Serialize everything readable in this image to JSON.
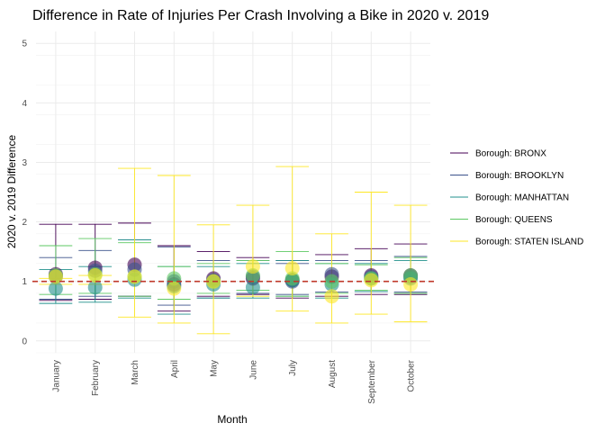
{
  "chart_data": {
    "type": "scatter",
    "title": "Difference in Rate of Injuries Per Crash Involving a Bike in 2020 v. 2019",
    "xlabel": "Month",
    "ylabel": "2020 v. 2019 Difference",
    "categories": [
      "January",
      "February",
      "March",
      "April",
      "May",
      "June",
      "July",
      "August",
      "September",
      "October"
    ],
    "ylim": [
      -0.2,
      5.2
    ],
    "yticks": [
      0,
      1,
      2,
      3,
      4,
      5
    ],
    "grid": true,
    "legend_position": "right",
    "reference_line": {
      "y": 1,
      "color": "#c0392b",
      "style": "dashed"
    },
    "series": [
      {
        "name": "Borough: BRONX",
        "color": "#440154",
        "values": [
          1.12,
          1.23,
          1.28,
          0.95,
          1.05,
          1.05,
          1.02,
          1.08,
          1.1,
          1.1
        ],
        "upper": [
          1.96,
          1.96,
          1.98,
          1.6,
          1.5,
          1.4,
          1.35,
          1.45,
          1.55,
          1.63
        ],
        "lower": [
          0.68,
          0.7,
          0.75,
          0.5,
          0.75,
          0.78,
          0.72,
          0.75,
          0.78,
          0.78
        ]
      },
      {
        "name": "Borough: BROOKLYN",
        "color": "#3b528b",
        "values": [
          1.08,
          1.18,
          1.2,
          1.0,
          1.02,
          1.08,
          1.0,
          1.12,
          1.08,
          1.08
        ],
        "upper": [
          1.4,
          1.52,
          1.7,
          1.58,
          1.35,
          1.35,
          1.3,
          1.35,
          1.35,
          1.42
        ],
        "lower": [
          0.7,
          0.75,
          0.75,
          0.6,
          0.72,
          0.8,
          0.78,
          0.82,
          0.83,
          0.82
        ]
      },
      {
        "name": "Borough: MANHATTAN",
        "color": "#21908c",
        "values": [
          0.88,
          0.9,
          1.03,
          0.92,
          0.95,
          0.9,
          1.02,
          0.95,
          1.05,
          1.05
        ],
        "upper": [
          1.2,
          1.25,
          1.7,
          1.25,
          1.25,
          1.3,
          1.35,
          1.3,
          1.3,
          1.35
        ],
        "lower": [
          0.63,
          0.65,
          0.72,
          0.45,
          0.72,
          0.72,
          0.75,
          0.72,
          0.83,
          0.8
        ]
      },
      {
        "name": "Borough: QUEENS",
        "color": "#5dc863",
        "values": [
          1.1,
          1.12,
          1.08,
          1.05,
          1.0,
          1.1,
          1.05,
          1.0,
          1.05,
          1.1
        ],
        "upper": [
          1.6,
          1.72,
          1.65,
          1.25,
          1.3,
          1.35,
          1.5,
          1.3,
          1.28,
          1.4
        ],
        "lower": [
          0.78,
          0.8,
          0.75,
          0.7,
          0.8,
          0.85,
          0.75,
          0.8,
          0.85,
          0.8
        ]
      },
      {
        "name": "Borough: STATEN ISLAND",
        "color": "#fde725",
        "values": [
          1.08,
          1.1,
          1.08,
          0.88,
          1.0,
          1.25,
          1.22,
          0.75,
          1.02,
          0.95
        ],
        "upper": [
          1.05,
          1.1,
          2.9,
          2.78,
          1.95,
          2.28,
          2.93,
          1.8,
          2.5,
          2.28
        ],
        "lower": [
          0.95,
          0.95,
          0.4,
          0.3,
          0.12,
          0.75,
          0.5,
          0.3,
          0.45,
          0.32
        ]
      }
    ]
  }
}
